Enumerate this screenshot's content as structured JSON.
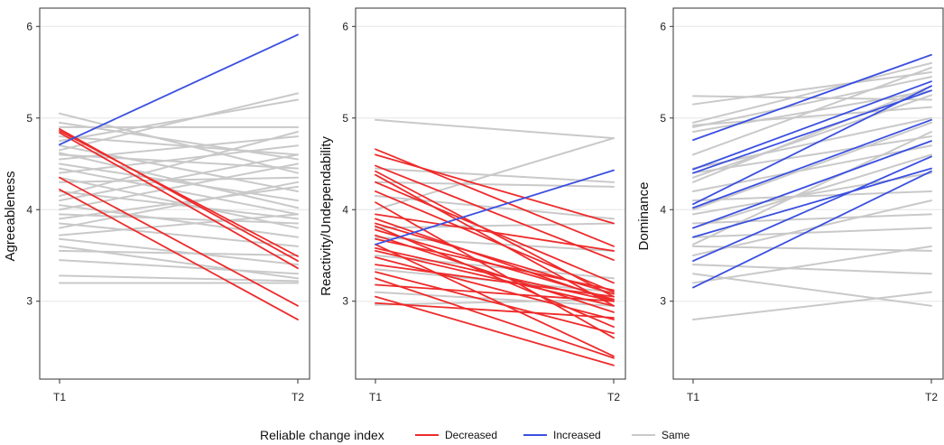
{
  "legend": {
    "title": "Reliable change index",
    "items": [
      {
        "label": "Decreased",
        "color": "#ee2b2b"
      },
      {
        "label": "Increased",
        "color": "#3a4fe0"
      },
      {
        "label": "Same",
        "color": "#c9c9c9"
      }
    ]
  },
  "chart_data": [
    {
      "type": "line",
      "ylabel": "Agreeableness",
      "categories": [
        "T1",
        "T2"
      ],
      "ylim": [
        2.15,
        6.2
      ],
      "yticks": [
        3,
        4,
        5,
        6
      ],
      "grid": true,
      "series": [
        {
          "group": "Increased",
          "values": [
            4.71,
            5.91
          ]
        },
        {
          "group": "Decreased",
          "values": [
            4.88,
            3.44
          ]
        },
        {
          "group": "Decreased",
          "values": [
            4.86,
            3.49
          ]
        },
        {
          "group": "Decreased",
          "values": [
            4.84,
            3.36
          ]
        },
        {
          "group": "Decreased",
          "values": [
            4.35,
            2.95
          ]
        },
        {
          "group": "Decreased",
          "values": [
            4.22,
            2.8
          ]
        },
        {
          "group": "Same",
          "values": [
            5.05,
            4.4
          ]
        },
        {
          "group": "Same",
          "values": [
            4.95,
            4.55
          ]
        },
        {
          "group": "Same",
          "values": [
            4.9,
            4.9
          ]
        },
        {
          "group": "Same",
          "values": [
            4.8,
            4.6
          ]
        },
        {
          "group": "Same",
          "values": [
            4.75,
            5.2
          ]
        },
        {
          "group": "Same",
          "values": [
            4.7,
            4.2
          ]
        },
        {
          "group": "Same",
          "values": [
            4.65,
            5.27
          ]
        },
        {
          "group": "Same",
          "values": [
            4.6,
            4.45
          ]
        },
        {
          "group": "Same",
          "values": [
            4.55,
            4.8
          ]
        },
        {
          "group": "Same",
          "values": [
            4.5,
            4.1
          ]
        },
        {
          "group": "Same",
          "values": [
            4.45,
            3.95
          ]
        },
        {
          "group": "Same",
          "values": [
            4.4,
            4.7
          ]
        },
        {
          "group": "Same",
          "values": [
            4.35,
            3.8
          ]
        },
        {
          "group": "Same",
          "values": [
            4.3,
            4.35
          ]
        },
        {
          "group": "Same",
          "values": [
            4.2,
            3.9
          ]
        },
        {
          "group": "Same",
          "values": [
            4.1,
            4.6
          ]
        },
        {
          "group": "Same",
          "values": [
            4.05,
            3.7
          ]
        },
        {
          "group": "Same",
          "values": [
            4.0,
            4.5
          ]
        },
        {
          "group": "Same",
          "values": [
            3.95,
            3.85
          ]
        },
        {
          "group": "Same",
          "values": [
            3.9,
            4.25
          ]
        },
        {
          "group": "Same",
          "values": [
            3.85,
            3.6
          ]
        },
        {
          "group": "Same",
          "values": [
            3.8,
            4.3
          ]
        },
        {
          "group": "Same",
          "values": [
            3.72,
            3.95
          ]
        },
        {
          "group": "Same",
          "values": [
            3.68,
            3.4
          ]
        },
        {
          "group": "Same",
          "values": [
            3.6,
            3.25
          ]
        },
        {
          "group": "Same",
          "values": [
            3.45,
            3.3
          ]
        },
        {
          "group": "Same",
          "values": [
            3.28,
            3.22
          ]
        },
        {
          "group": "Same",
          "values": [
            3.2,
            3.2
          ]
        },
        {
          "group": "Same",
          "values": [
            4.62,
            4.02
          ]
        },
        {
          "group": "Same",
          "values": [
            4.15,
            4.85
          ]
        },
        {
          "group": "Same",
          "values": [
            3.55,
            3.5
          ]
        }
      ]
    },
    {
      "type": "line",
      "ylabel": "Reactivity/Undependability",
      "categories": [
        "T1",
        "T2"
      ],
      "ylim": [
        2.15,
        6.2
      ],
      "yticks": [
        3,
        4,
        5,
        6
      ],
      "grid": true,
      "series": [
        {
          "group": "Increased",
          "values": [
            3.62,
            4.43
          ]
        },
        {
          "group": "Same",
          "values": [
            4.98,
            4.78
          ]
        },
        {
          "group": "Same",
          "values": [
            4.45,
            4.3
          ]
        },
        {
          "group": "Same",
          "values": [
            4.3,
            4.25
          ]
        },
        {
          "group": "Same",
          "values": [
            4.15,
            3.9
          ]
        },
        {
          "group": "Same",
          "values": [
            3.8,
            3.85
          ]
        },
        {
          "group": "Same",
          "values": [
            3.7,
            3.55
          ]
        },
        {
          "group": "Same",
          "values": [
            3.5,
            3.25
          ]
        },
        {
          "group": "Same",
          "values": [
            3.35,
            3.1
          ]
        },
        {
          "group": "Same",
          "values": [
            2.96,
            3.02
          ]
        },
        {
          "group": "Same",
          "values": [
            3.1,
            2.95
          ]
        },
        {
          "group": "Same",
          "values": [
            4.0,
            4.78
          ]
        },
        {
          "group": "Decreased",
          "values": [
            4.66,
            3.6
          ]
        },
        {
          "group": "Decreased",
          "values": [
            4.6,
            3.85
          ]
        },
        {
          "group": "Decreased",
          "values": [
            4.48,
            3.45
          ]
        },
        {
          "group": "Decreased",
          "values": [
            4.42,
            3.05
          ]
        },
        {
          "group": "Decreased",
          "values": [
            4.38,
            2.95
          ]
        },
        {
          "group": "Decreased",
          "values": [
            4.3,
            3.2
          ]
        },
        {
          "group": "Decreased",
          "values": [
            4.2,
            3.1
          ]
        },
        {
          "group": "Decreased",
          "values": [
            4.08,
            2.6
          ]
        },
        {
          "group": "Decreased",
          "values": [
            3.95,
            3.55
          ]
        },
        {
          "group": "Decreased",
          "values": [
            3.9,
            3.0
          ]
        },
        {
          "group": "Decreased",
          "values": [
            3.85,
            3.08
          ]
        },
        {
          "group": "Decreased",
          "values": [
            3.82,
            2.72
          ]
        },
        {
          "group": "Decreased",
          "values": [
            3.78,
            3.02
          ]
        },
        {
          "group": "Decreased",
          "values": [
            3.72,
            2.88
          ]
        },
        {
          "group": "Decreased",
          "values": [
            3.68,
            3.12
          ]
        },
        {
          "group": "Decreased",
          "values": [
            3.62,
            2.4
          ]
        },
        {
          "group": "Decreased",
          "values": [
            3.58,
            3.0
          ]
        },
        {
          "group": "Decreased",
          "values": [
            3.55,
            2.95
          ]
        },
        {
          "group": "Decreased",
          "values": [
            3.48,
            2.8
          ]
        },
        {
          "group": "Decreased",
          "values": [
            3.4,
            3.05
          ]
        },
        {
          "group": "Decreased",
          "values": [
            3.32,
            2.65
          ]
        },
        {
          "group": "Decreased",
          "values": [
            3.25,
            2.38
          ]
        },
        {
          "group": "Decreased",
          "values": [
            3.18,
            3.0
          ]
        },
        {
          "group": "Decreased",
          "values": [
            3.05,
            2.3
          ]
        },
        {
          "group": "Decreased",
          "values": [
            2.98,
            2.82
          ]
        }
      ]
    },
    {
      "type": "line",
      "ylabel": "Dominance",
      "categories": [
        "T1",
        "T2"
      ],
      "ylim": [
        2.15,
        6.2
      ],
      "yticks": [
        3,
        4,
        5,
        6
      ],
      "grid": true,
      "series": [
        {
          "group": "Same",
          "values": [
            5.24,
            5.2
          ]
        },
        {
          "group": "Same",
          "values": [
            5.15,
            5.5
          ]
        },
        {
          "group": "Same",
          "values": [
            4.95,
            5.6
          ]
        },
        {
          "group": "Same",
          "values": [
            4.9,
            5.45
          ]
        },
        {
          "group": "Same",
          "values": [
            4.85,
            5.3
          ]
        },
        {
          "group": "Same",
          "values": [
            4.6,
            5.55
          ]
        },
        {
          "group": "Same",
          "values": [
            4.45,
            5.0
          ]
        },
        {
          "group": "Same",
          "values": [
            4.4,
            4.8
          ]
        },
        {
          "group": "Same",
          "values": [
            4.3,
            5.35
          ]
        },
        {
          "group": "Same",
          "values": [
            4.2,
            4.7
          ]
        },
        {
          "group": "Same",
          "values": [
            4.1,
            4.2
          ]
        },
        {
          "group": "Same",
          "values": [
            4.0,
            4.95
          ]
        },
        {
          "group": "Same",
          "values": [
            3.95,
            4.4
          ]
        },
        {
          "group": "Same",
          "values": [
            3.85,
            3.95
          ]
        },
        {
          "group": "Same",
          "values": [
            3.8,
            4.6
          ]
        },
        {
          "group": "Same",
          "values": [
            3.7,
            3.8
          ]
        },
        {
          "group": "Same",
          "values": [
            3.6,
            3.55
          ]
        },
        {
          "group": "Same",
          "values": [
            3.5,
            4.1
          ]
        },
        {
          "group": "Same",
          "values": [
            3.4,
            3.3
          ]
        },
        {
          "group": "Same",
          "values": [
            3.3,
            2.95
          ]
        },
        {
          "group": "Same",
          "values": [
            3.2,
            3.6
          ]
        },
        {
          "group": "Same",
          "values": [
            2.8,
            3.1
          ]
        },
        {
          "group": "Same",
          "values": [
            4.92,
            5.12
          ]
        },
        {
          "group": "Same",
          "values": [
            4.35,
            5.25
          ]
        },
        {
          "group": "Same",
          "values": [
            3.62,
            4.85
          ]
        },
        {
          "group": "Increased",
          "values": [
            4.76,
            5.69
          ]
        },
        {
          "group": "Increased",
          "values": [
            4.44,
            5.4
          ]
        },
        {
          "group": "Increased",
          "values": [
            4.4,
            5.3
          ]
        },
        {
          "group": "Increased",
          "values": [
            4.06,
            5.35
          ]
        },
        {
          "group": "Increased",
          "values": [
            4.02,
            4.98
          ]
        },
        {
          "group": "Increased",
          "values": [
            3.8,
            4.75
          ]
        },
        {
          "group": "Increased",
          "values": [
            3.7,
            4.45
          ]
        },
        {
          "group": "Increased",
          "values": [
            3.44,
            4.58
          ]
        },
        {
          "group": "Increased",
          "values": [
            3.15,
            4.42
          ]
        }
      ]
    }
  ]
}
